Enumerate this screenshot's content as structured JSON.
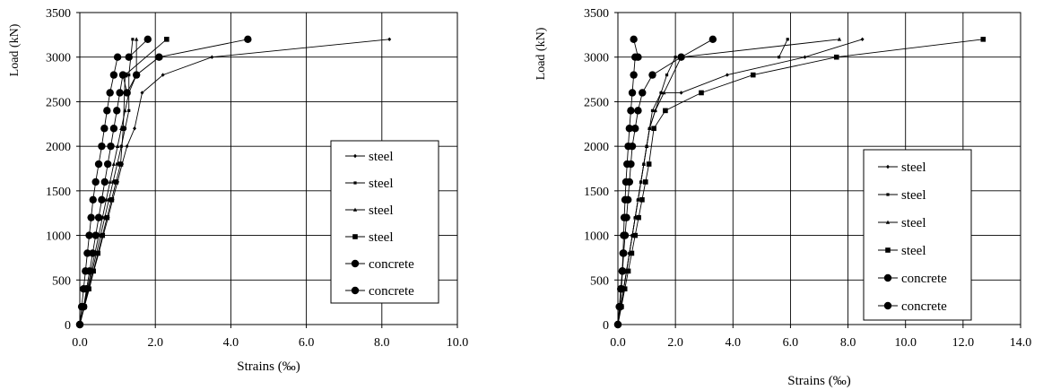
{
  "chart_data": [
    {
      "type": "line",
      "xlabel": "Strains (‰)",
      "ylabel": "Load (kN)",
      "xlim": [
        0,
        10
      ],
      "ylim": [
        0,
        3500
      ],
      "x_ticks": [
        "0.0",
        "2.0",
        "4.0",
        "6.0",
        "8.0",
        "10.0"
      ],
      "y_ticks": [
        "0",
        "500",
        "1000",
        "1500",
        "2000",
        "2500",
        "3000",
        "3500"
      ],
      "grid": true,
      "legend_position": "right",
      "series": [
        {
          "name": "steel",
          "marker": "small-diamond",
          "x": [
            0,
            0.12,
            0.25,
            0.37,
            0.5,
            0.62,
            0.75,
            0.87,
            1.0,
            1.12,
            1.25,
            1.45,
            1.65,
            2.2,
            3.5,
            8.2
          ],
          "y": [
            0,
            200,
            400,
            600,
            800,
            1000,
            1200,
            1400,
            1600,
            1800,
            2000,
            2200,
            2600,
            2800,
            3000,
            3200
          ]
        },
        {
          "name": "steel",
          "marker": "small-square",
          "x": [
            0,
            0.11,
            0.22,
            0.33,
            0.44,
            0.55,
            0.66,
            0.77,
            0.88,
            0.99,
            1.1,
            1.2,
            1.3,
            1.3,
            1.4
          ],
          "y": [
            0,
            200,
            400,
            600,
            800,
            1000,
            1200,
            1400,
            1600,
            1800,
            2000,
            2200,
            2400,
            2800,
            3200
          ]
        },
        {
          "name": "steel",
          "marker": "small-triangle",
          "x": [
            0,
            0.1,
            0.2,
            0.3,
            0.4,
            0.5,
            0.6,
            0.7,
            0.8,
            0.9,
            1.0,
            1.1,
            1.2,
            1.3,
            1.5,
            1.5
          ],
          "y": [
            0,
            200,
            400,
            600,
            800,
            1000,
            1200,
            1400,
            1600,
            1800,
            2000,
            2200,
            2400,
            2600,
            2800,
            3200
          ]
        },
        {
          "name": "steel",
          "marker": "square",
          "x": [
            0,
            0.12,
            0.24,
            0.36,
            0.48,
            0.6,
            0.72,
            0.84,
            0.96,
            1.08,
            1.15,
            1.2,
            2.3
          ],
          "y": [
            0,
            200,
            400,
            600,
            800,
            1000,
            1200,
            1400,
            1600,
            1800,
            2200,
            2800,
            3200
          ]
        },
        {
          "name": "concrete",
          "marker": "circle",
          "x": [
            0,
            0.05,
            0.1,
            0.15,
            0.2,
            0.25,
            0.3,
            0.35,
            0.42,
            0.5,
            0.58,
            0.65,
            0.72,
            0.8,
            0.9,
            1.0,
            1.3,
            1.8
          ],
          "y": [
            0,
            200,
            400,
            600,
            800,
            1000,
            1200,
            1400,
            1600,
            1800,
            2000,
            2200,
            2400,
            2600,
            2800,
            3000,
            3000,
            3200
          ]
        },
        {
          "name": "concrete",
          "marker": "circle",
          "x": [
            0,
            0.1,
            0.18,
            0.26,
            0.34,
            0.42,
            0.5,
            0.58,
            0.66,
            0.74,
            0.82,
            0.9,
            0.98,
            1.06,
            1.14,
            1.25,
            1.5,
            2.1,
            4.45
          ],
          "y": [
            0,
            200,
            400,
            600,
            800,
            1000,
            1200,
            1400,
            1600,
            1800,
            2000,
            2200,
            2400,
            2600,
            2800,
            2600,
            2800,
            3000,
            3200
          ]
        }
      ]
    },
    {
      "type": "line",
      "xlabel": "Strains (‰)",
      "ylabel": "Load (kN)",
      "xlim": [
        0,
        14
      ],
      "ylim": [
        0,
        3500
      ],
      "x_ticks": [
        "0.0",
        "2.0",
        "4.0",
        "6.0",
        "8.0",
        "10.0",
        "12.0",
        "14.0"
      ],
      "y_ticks": [
        "0",
        "500",
        "1000",
        "1500",
        "2000",
        "2500",
        "3000",
        "3500"
      ],
      "grid": true,
      "legend_position": "right",
      "series": [
        {
          "name": "steel",
          "marker": "small-diamond",
          "x": [
            0,
            0.1,
            0.2,
            0.3,
            0.4,
            0.5,
            0.6,
            0.7,
            0.8,
            0.9,
            1.0,
            1.1,
            1.3,
            1.5,
            2.2,
            3.8,
            6.5,
            8.5
          ],
          "y": [
            0,
            200,
            400,
            600,
            800,
            1000,
            1200,
            1400,
            1600,
            1800,
            2000,
            2200,
            2400,
            2600,
            2600,
            2800,
            3000,
            3200
          ]
        },
        {
          "name": "steel",
          "marker": "small-square",
          "x": [
            0,
            0.1,
            0.2,
            0.3,
            0.4,
            0.5,
            0.6,
            0.7,
            0.8,
            0.9,
            1.0,
            1.1,
            1.2,
            1.5,
            1.7,
            2.0,
            5.6,
            5.9
          ],
          "y": [
            0,
            200,
            400,
            600,
            800,
            1000,
            1200,
            1400,
            1600,
            1800,
            2000,
            2200,
            2400,
            2600,
            2800,
            3000,
            3000,
            3200
          ]
        },
        {
          "name": "steel",
          "marker": "small-triangle",
          "x": [
            0,
            0.1,
            0.2,
            0.3,
            0.4,
            0.5,
            0.6,
            0.7,
            0.8,
            0.9,
            1.0,
            1.1,
            1.3,
            1.6,
            2.2,
            7.7
          ],
          "y": [
            0,
            200,
            400,
            600,
            800,
            1000,
            1200,
            1400,
            1600,
            1800,
            2000,
            2200,
            2400,
            2600,
            3000,
            3200
          ]
        },
        {
          "name": "steel",
          "marker": "square",
          "x": [
            0,
            0.12,
            0.24,
            0.36,
            0.48,
            0.6,
            0.72,
            0.84,
            0.96,
            1.08,
            1.25,
            1.65,
            2.9,
            4.7,
            7.6,
            12.7
          ],
          "y": [
            0,
            200,
            400,
            600,
            800,
            1000,
            1200,
            1400,
            1600,
            1800,
            2200,
            2400,
            2600,
            2800,
            3000,
            3200
          ]
        },
        {
          "name": "concrete",
          "marker": "circle",
          "x": [
            0,
            0.05,
            0.1,
            0.15,
            0.18,
            0.2,
            0.22,
            0.25,
            0.28,
            0.32,
            0.36,
            0.4,
            0.45,
            0.5,
            0.55,
            0.6,
            0.7,
            0.55
          ],
          "y": [
            0,
            200,
            400,
            600,
            800,
            1000,
            1200,
            1400,
            1600,
            1800,
            2000,
            2200,
            2400,
            2600,
            2800,
            3000,
            3000,
            3200
          ]
        },
        {
          "name": "concrete",
          "marker": "circle",
          "x": [
            0,
            0.08,
            0.12,
            0.16,
            0.2,
            0.25,
            0.3,
            0.35,
            0.4,
            0.45,
            0.5,
            0.6,
            0.7,
            0.85,
            1.2,
            2.2,
            3.3
          ],
          "y": [
            0,
            200,
            400,
            600,
            800,
            1000,
            1200,
            1400,
            1600,
            1800,
            2000,
            2200,
            2400,
            2600,
            2800,
            3000,
            3200
          ]
        }
      ]
    }
  ]
}
